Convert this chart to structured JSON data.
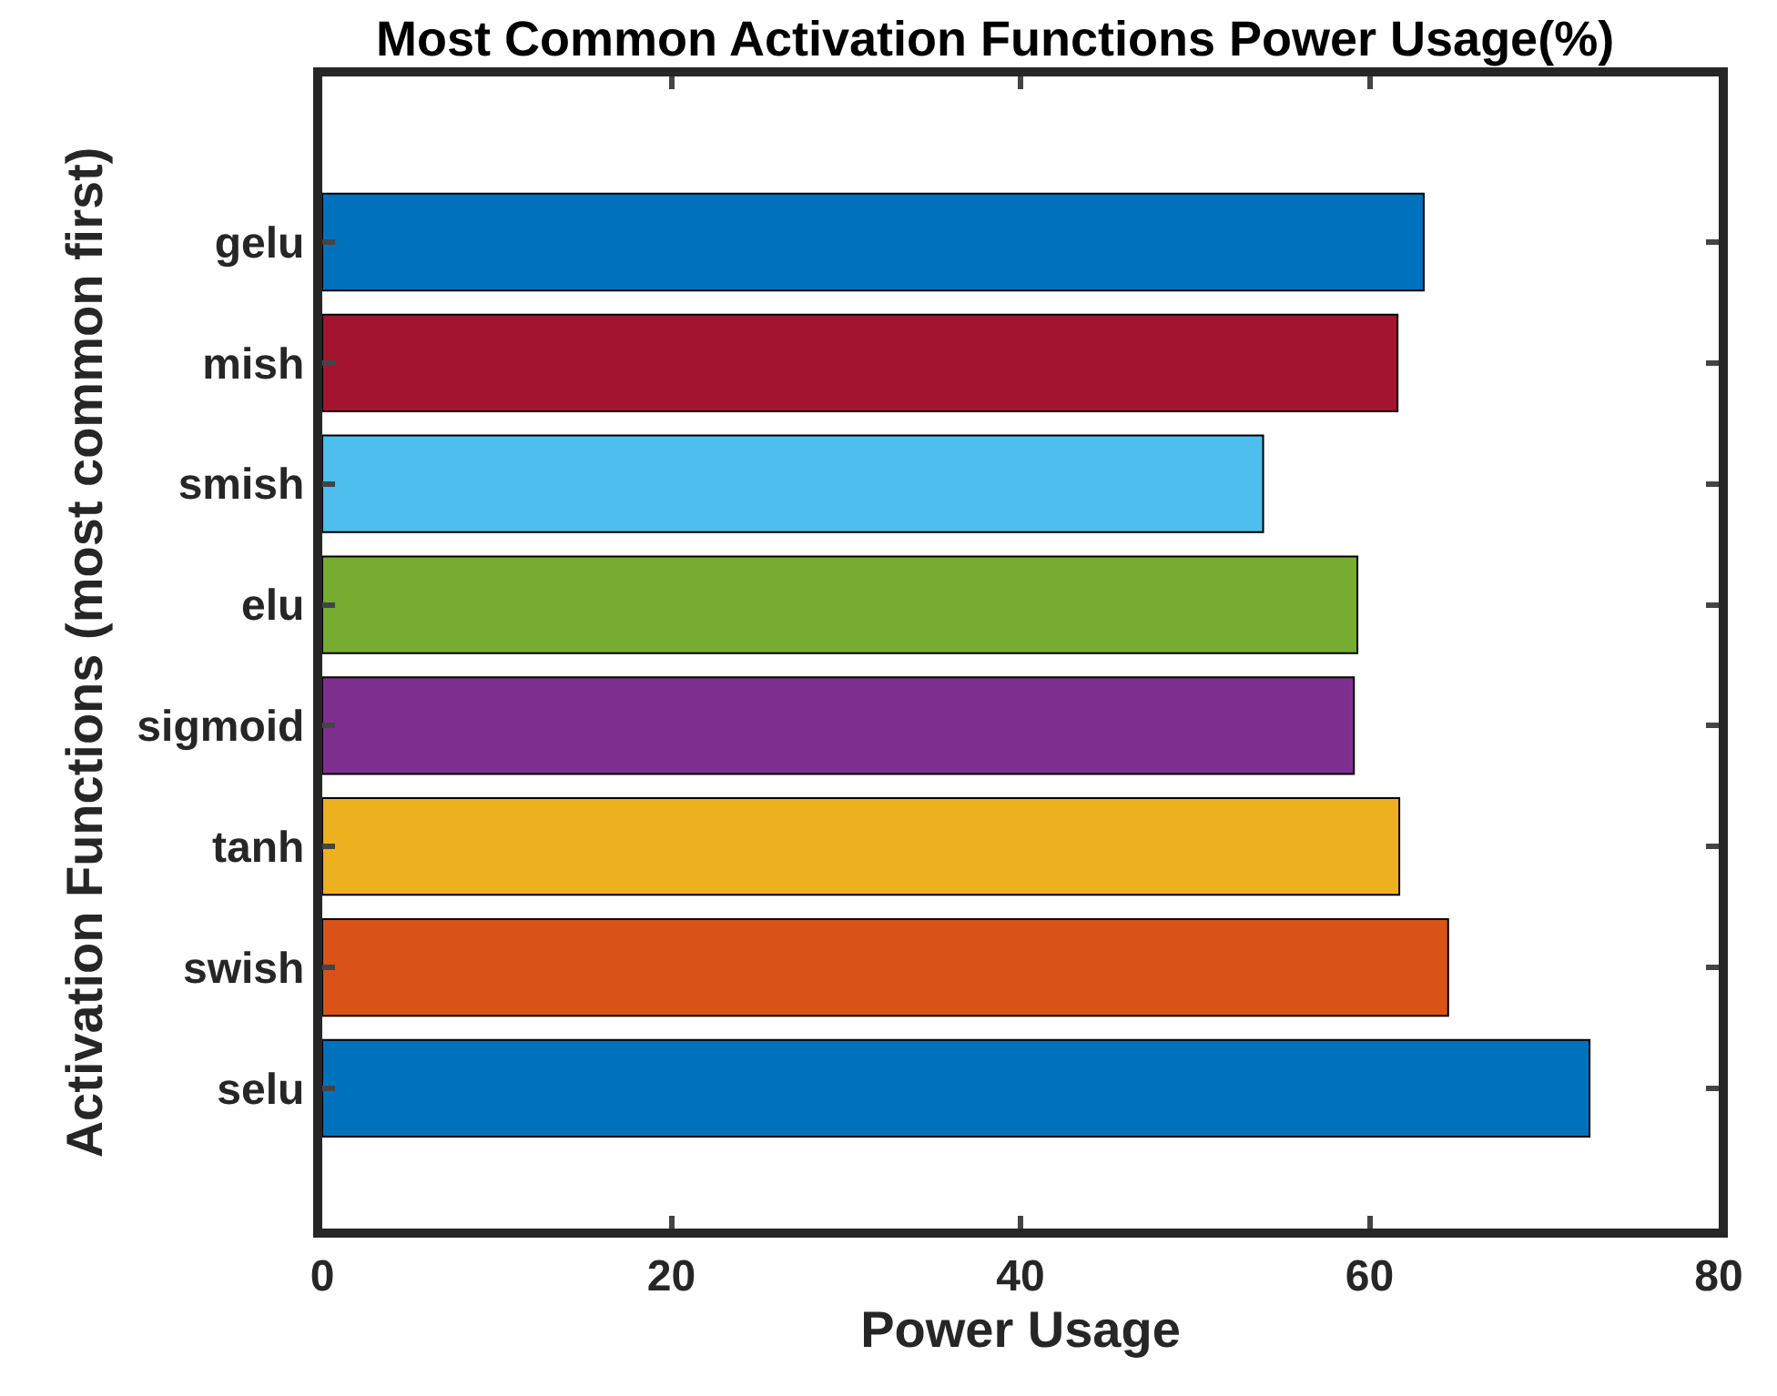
{
  "chart_data": {
    "type": "bar",
    "orientation": "horizontal",
    "title": "Most Common Activation Functions Power Usage(%)",
    "xlabel": "Power Usage",
    "ylabel": "Activation Functions (most common first)",
    "categories": [
      "gelu",
      "mish",
      "smish",
      "elu",
      "sigmoid",
      "tanh",
      "swish",
      "selu"
    ],
    "values": [
      63.1,
      61.6,
      53.9,
      59.3,
      59.1,
      61.7,
      64.5,
      72.6
    ],
    "colors": [
      "#0072bd",
      "#a2142f",
      "#4dbeee",
      "#77ac30",
      "#7e2f8e",
      "#edb120",
      "#d95319",
      "#0072bd"
    ],
    "xlim": [
      0,
      80
    ],
    "xticks": [
      0,
      20,
      40,
      60,
      80
    ]
  }
}
